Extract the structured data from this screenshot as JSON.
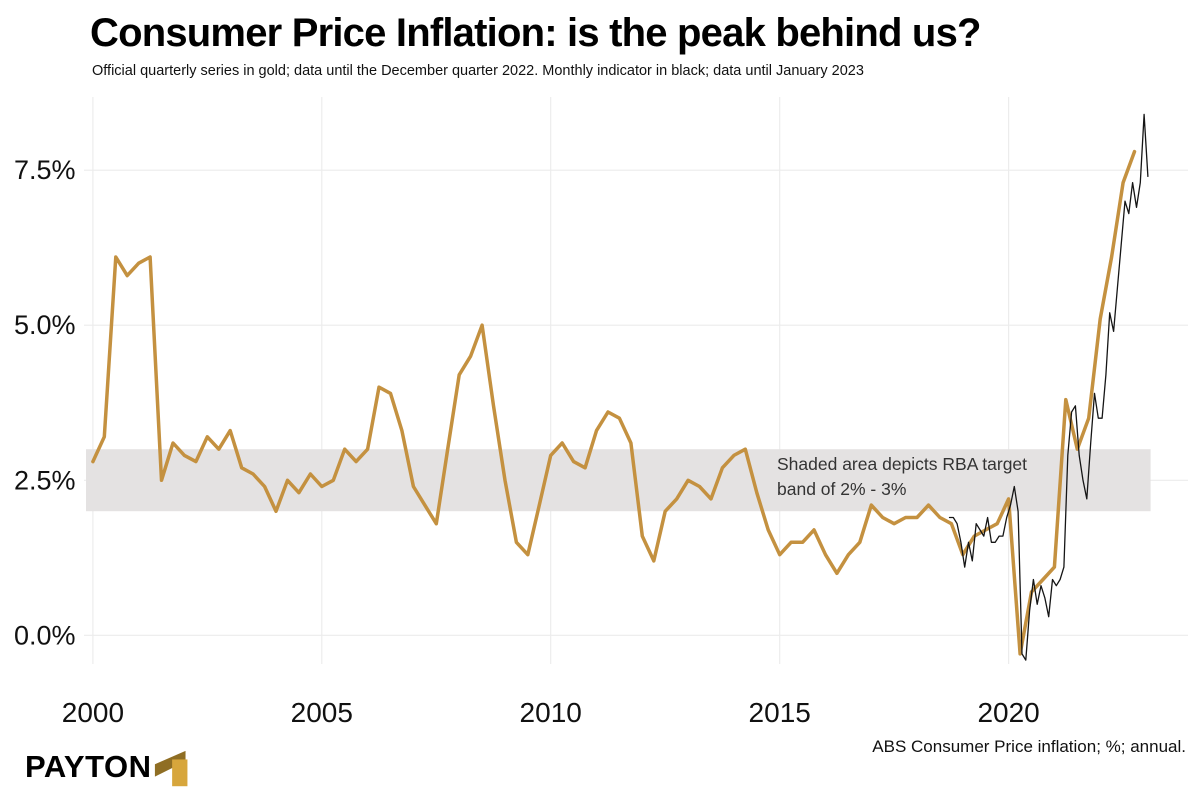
{
  "brand": {
    "name": "PAYTON"
  },
  "chart_data": {
    "type": "line",
    "title": "Consumer Price Inflation: is the peak behind us?",
    "subtitle": "Official quarterly series in gold; data until the December quarter 2022. Monthly indicator in black; data until January 2023",
    "source_note": "ABS Consumer Price inflation; %; annual.",
    "xlabel": "",
    "ylabel": "",
    "xlim": [
      1999.85,
      2023.35
    ],
    "ylim": [
      -0.85,
      8.68
    ],
    "grid": true,
    "grid_color": "#ECECEC",
    "legend_position": "none",
    "yticks": [
      {
        "value": 0.0,
        "label": "0.0%"
      },
      {
        "value": 2.5,
        "label": "2.5%"
      },
      {
        "value": 5.0,
        "label": "5.0%"
      },
      {
        "value": 7.5,
        "label": "7.5%"
      }
    ],
    "xticks": [
      {
        "value": 2000,
        "label": "2000"
      },
      {
        "value": 2005,
        "label": "2005"
      },
      {
        "value": 2010,
        "label": "2010"
      },
      {
        "value": 2015,
        "label": "2015"
      },
      {
        "value": 2020,
        "label": "2020"
      }
    ],
    "target_band": {
      "from_pct": 2,
      "to_pct": 3,
      "x_end": 2023.1,
      "color": "#E4E2E2",
      "annotation_line1": "Shaded area depicts RBA target",
      "annotation_line2": "band of 2% - 3%"
    },
    "series": [
      {
        "id": "quarterly-official",
        "name": "Official quarterly CPI (gold), annual % change, to December quarter 2022",
        "color": "#C49140",
        "width": 3.5,
        "x": [
          2000.0,
          2000.25,
          2000.5,
          2000.75,
          2001.0,
          2001.25,
          2001.5,
          2001.75,
          2002.0,
          2002.25,
          2002.5,
          2002.75,
          2003.0,
          2003.25,
          2003.5,
          2003.75,
          2004.0,
          2004.25,
          2004.5,
          2004.75,
          2005.0,
          2005.25,
          2005.5,
          2005.75,
          2006.0,
          2006.25,
          2006.5,
          2006.75,
          2007.0,
          2007.25,
          2007.5,
          2007.75,
          2008.0,
          2008.25,
          2008.5,
          2008.75,
          2009.0,
          2009.25,
          2009.5,
          2009.75,
          2010.0,
          2010.25,
          2010.5,
          2010.75,
          2011.0,
          2011.25,
          2011.5,
          2011.75,
          2012.0,
          2012.25,
          2012.5,
          2012.75,
          2013.0,
          2013.25,
          2013.5,
          2013.75,
          2014.0,
          2014.25,
          2014.5,
          2014.75,
          2015.0,
          2015.25,
          2015.5,
          2015.75,
          2016.0,
          2016.25,
          2016.5,
          2016.75,
          2017.0,
          2017.25,
          2017.5,
          2017.75,
          2018.0,
          2018.25,
          2018.5,
          2018.75,
          2019.0,
          2019.25,
          2019.5,
          2019.75,
          2020.0,
          2020.25,
          2020.5,
          2020.75,
          2021.0,
          2021.25,
          2021.5,
          2021.75,
          2022.0,
          2022.25,
          2022.5,
          2022.75
        ],
        "values": [
          2.8,
          3.2,
          6.1,
          5.8,
          6.0,
          6.1,
          2.5,
          3.1,
          2.9,
          2.8,
          3.2,
          3.0,
          3.3,
          2.7,
          2.6,
          2.4,
          2.0,
          2.5,
          2.3,
          2.6,
          2.4,
          2.5,
          3.0,
          2.8,
          3.0,
          4.0,
          3.9,
          3.3,
          2.4,
          2.1,
          1.8,
          3.0,
          4.2,
          4.5,
          5.0,
          3.7,
          2.5,
          1.5,
          1.3,
          2.1,
          2.9,
          3.1,
          2.8,
          2.7,
          3.3,
          3.6,
          3.5,
          3.1,
          1.6,
          1.2,
          2.0,
          2.2,
          2.5,
          2.4,
          2.2,
          2.7,
          2.9,
          3.0,
          2.3,
          1.7,
          1.3,
          1.5,
          1.5,
          1.7,
          1.3,
          1.0,
          1.3,
          1.5,
          2.1,
          1.9,
          1.8,
          1.9,
          1.9,
          2.1,
          1.9,
          1.8,
          1.3,
          1.6,
          1.7,
          1.8,
          2.2,
          -0.3,
          0.7,
          0.9,
          1.1,
          3.8,
          3.0,
          3.5,
          5.1,
          6.1,
          7.3,
          7.8
        ]
      },
      {
        "id": "monthly-indicator",
        "name": "Monthly CPI indicator (black), annual % change, to January 2023",
        "color": "#151515",
        "width": 1.3,
        "x": [
          2018.708,
          2018.792,
          2018.875,
          2018.958,
          2019.042,
          2019.125,
          2019.208,
          2019.292,
          2019.375,
          2019.458,
          2019.542,
          2019.625,
          2019.708,
          2019.792,
          2019.875,
          2019.958,
          2020.042,
          2020.125,
          2020.208,
          2020.292,
          2020.375,
          2020.458,
          2020.542,
          2020.625,
          2020.708,
          2020.792,
          2020.875,
          2020.958,
          2021.042,
          2021.125,
          2021.208,
          2021.292,
          2021.375,
          2021.458,
          2021.542,
          2021.625,
          2021.708,
          2021.792,
          2021.875,
          2021.958,
          2022.042,
          2022.125,
          2022.208,
          2022.292,
          2022.375,
          2022.458,
          2022.542,
          2022.625,
          2022.708,
          2022.792,
          2022.875,
          2022.958,
          2023.042
        ],
        "values": [
          1.9,
          1.9,
          1.8,
          1.5,
          1.1,
          1.5,
          1.2,
          1.8,
          1.7,
          1.6,
          1.9,
          1.5,
          1.5,
          1.6,
          1.6,
          1.9,
          2.1,
          2.4,
          2.0,
          -0.3,
          -0.4,
          0.4,
          0.9,
          0.5,
          0.8,
          0.6,
          0.3,
          0.9,
          0.8,
          0.9,
          1.1,
          2.9,
          3.6,
          3.7,
          2.9,
          2.5,
          2.2,
          3.1,
          3.9,
          3.5,
          3.5,
          4.2,
          5.2,
          4.9,
          5.6,
          6.3,
          7.0,
          6.8,
          7.3,
          6.9,
          7.3,
          8.4,
          7.4
        ]
      }
    ]
  }
}
